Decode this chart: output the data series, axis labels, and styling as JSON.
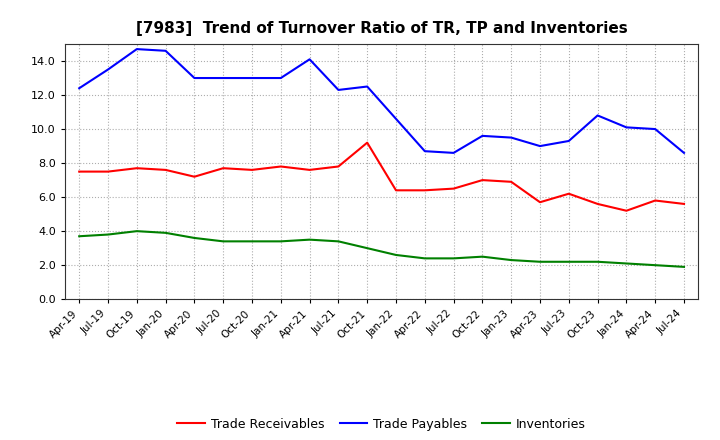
{
  "title": "[7983]  Trend of Turnover Ratio of TR, TP and Inventories",
  "x_labels": [
    "Apr-19",
    "Jul-19",
    "Oct-19",
    "Jan-20",
    "Apr-20",
    "Jul-20",
    "Oct-20",
    "Jan-21",
    "Apr-21",
    "Jul-21",
    "Oct-21",
    "Jan-22",
    "Apr-22",
    "Jul-22",
    "Oct-22",
    "Jan-23",
    "Apr-23",
    "Jul-23",
    "Oct-23",
    "Jan-24",
    "Apr-24",
    "Jul-24"
  ],
  "trade_receivables": [
    7.5,
    7.5,
    7.7,
    7.6,
    7.2,
    7.7,
    7.6,
    7.8,
    7.6,
    7.8,
    9.2,
    6.4,
    6.4,
    6.5,
    7.0,
    6.9,
    5.7,
    6.2,
    5.6,
    5.2,
    5.8,
    5.6
  ],
  "trade_payables": [
    12.4,
    13.5,
    14.7,
    14.6,
    13.0,
    13.0,
    13.0,
    13.0,
    14.1,
    12.3,
    12.5,
    10.6,
    8.7,
    8.6,
    9.6,
    9.5,
    9.0,
    9.3,
    10.8,
    10.1,
    10.0,
    8.6
  ],
  "inventories": [
    3.7,
    3.8,
    4.0,
    3.9,
    3.6,
    3.4,
    3.4,
    3.4,
    3.5,
    3.4,
    3.0,
    2.6,
    2.4,
    2.4,
    2.5,
    2.3,
    2.2,
    2.2,
    2.2,
    2.1,
    2.0,
    1.9
  ],
  "tr_color": "#ff0000",
  "tp_color": "#0000ff",
  "inv_color": "#008000",
  "ylim": [
    0,
    15.0
  ],
  "yticks": [
    0.0,
    2.0,
    4.0,
    6.0,
    8.0,
    10.0,
    12.0,
    14.0
  ],
  "background_color": "#ffffff",
  "grid_color": "#999999",
  "title_fontsize": 11,
  "legend_labels": [
    "Trade Receivables",
    "Trade Payables",
    "Inventories"
  ]
}
